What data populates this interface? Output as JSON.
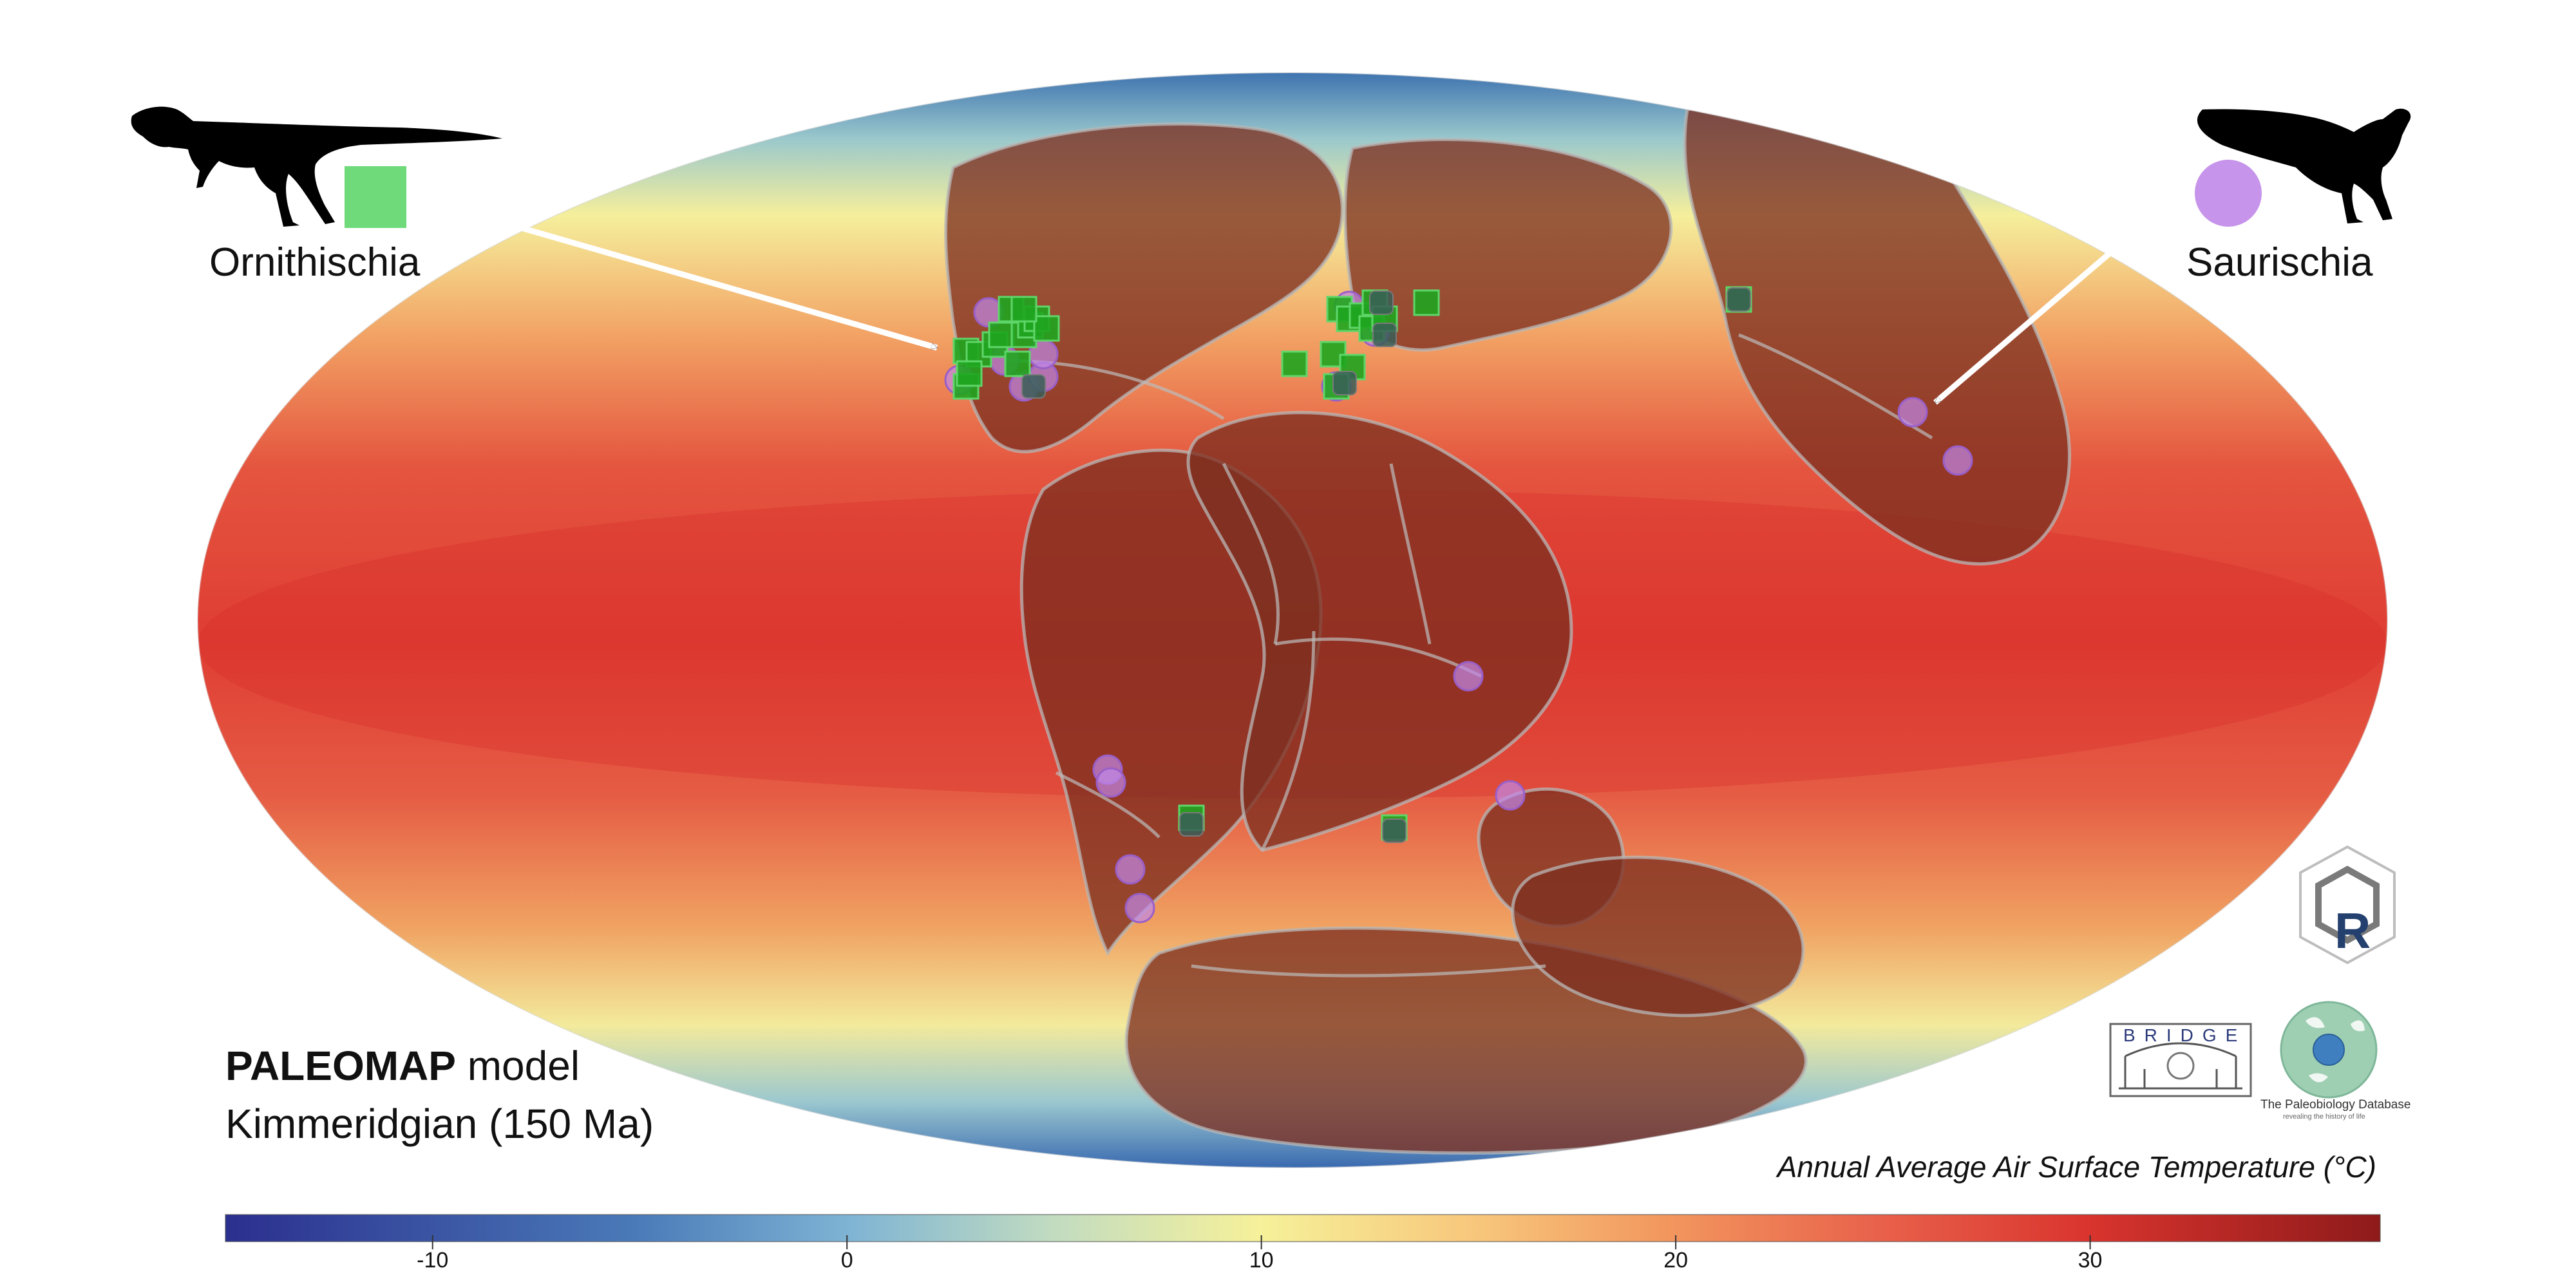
{
  "map": {
    "title_bold": "PALEOMAP",
    "title_rest": " model",
    "subtitle": "Kimmeridgian (150 Ma)"
  },
  "legend": {
    "ornithischia_label": "Ornithischia",
    "saurischia_label": "Saurischia",
    "ornithischia_color": "#5fd66a",
    "saurischia_color": "#c088e8"
  },
  "colorbar": {
    "title": "Annual Average Air Surface Temperature (°C)",
    "min": -15,
    "max": 37,
    "ticks": [
      -10,
      0,
      10,
      20,
      30
    ],
    "tick_labels": [
      "-10",
      "0",
      "10",
      "20",
      "30"
    ],
    "stops": [
      {
        "value": -15,
        "color": "#2b2f8e"
      },
      {
        "value": -5,
        "color": "#4a7ab8"
      },
      {
        "value": 0,
        "color": "#7fb4d4"
      },
      {
        "value": 5,
        "color": "#c2dcc0"
      },
      {
        "value": 10,
        "color": "#f6f19a"
      },
      {
        "value": 15,
        "color": "#f7c77c"
      },
      {
        "value": 20,
        "color": "#f2965e"
      },
      {
        "value": 25,
        "color": "#e8604a"
      },
      {
        "value": 30,
        "color": "#d9342e"
      },
      {
        "value": 37,
        "color": "#8e1a1a"
      }
    ]
  },
  "logos": {
    "bridge_text": "BRIDGE",
    "pbdb_name": "The Paleobiology Database",
    "pbdb_tagline": "revealing the history of life",
    "gplates_letter": "R"
  }
}
